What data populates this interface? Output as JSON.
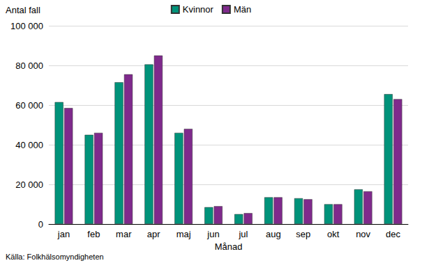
{
  "chart_data": {
    "type": "bar",
    "x_label": "Månad",
    "y_label": "Antal fall",
    "categories": [
      "jan",
      "feb",
      "mar",
      "apr",
      "maj",
      "jun",
      "jul",
      "aug",
      "sep",
      "okt",
      "nov",
      "dec"
    ],
    "series": [
      {
        "name": "Kvinnor",
        "color": "#00937a",
        "values": [
          61500,
          45000,
          71500,
          80500,
          46000,
          8500,
          5000,
          13500,
          13000,
          10000,
          17500,
          65500
        ]
      },
      {
        "name": "Män",
        "color": "#7f2a8c",
        "values": [
          58500,
          46000,
          75500,
          85000,
          48000,
          9000,
          5500,
          13500,
          12500,
          10000,
          16500,
          63000
        ]
      }
    ],
    "ylim": [
      0,
      100000
    ],
    "yticks": [
      0,
      {
        "value": 20000,
        "label": "20 000"
      },
      {
        "value": 40000,
        "label": "40 000"
      },
      {
        "value": 60000,
        "label": "60 000"
      },
      {
        "value": 80000,
        "label": "80 000"
      },
      {
        "value": 100000,
        "label": "100 000"
      }
    ],
    "grid": true,
    "legend": "top",
    "annotations": [
      "Källa: Folkhälsomyndigheten"
    ]
  }
}
